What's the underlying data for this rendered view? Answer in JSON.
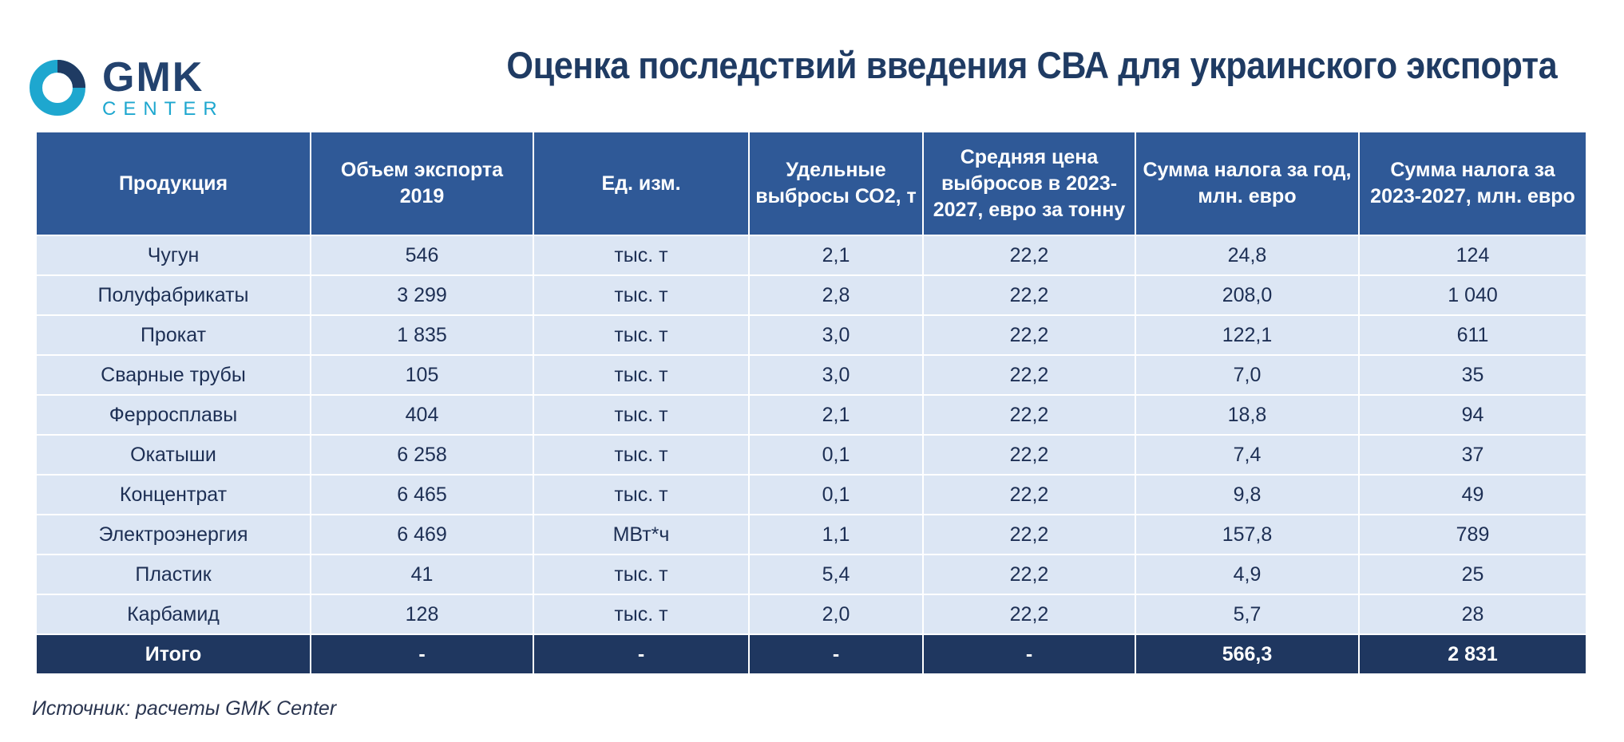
{
  "logo": {
    "main": "GMK",
    "sub": "CENTER"
  },
  "title": "Оценка последствий введения СВА для украинского экспорта",
  "table": {
    "headers": [
      "Продукция",
      "Объем экспорта 2019",
      "Ед. изм.",
      "Удельные выбросы СО2, т",
      "Средняя цена выбросов в 2023-2027, евро за тонну",
      "Сумма налога за год, млн. евро",
      "Сумма налога за 2023-2027, млн. евро"
    ],
    "rows": [
      [
        "Чугун",
        "546",
        "тыс. т",
        "2,1",
        "22,2",
        "24,8",
        "124"
      ],
      [
        "Полуфабрикаты",
        "3 299",
        "тыс. т",
        "2,8",
        "22,2",
        "208,0",
        "1 040"
      ],
      [
        "Прокат",
        "1 835",
        "тыс. т",
        "3,0",
        "22,2",
        "122,1",
        "611"
      ],
      [
        "Сварные трубы",
        "105",
        "тыс. т",
        "3,0",
        "22,2",
        "7,0",
        "35"
      ],
      [
        "Ферросплавы",
        "404",
        "тыс. т",
        "2,1",
        "22,2",
        "18,8",
        "94"
      ],
      [
        "Окатыши",
        "6 258",
        "тыс. т",
        "0,1",
        "22,2",
        "7,4",
        "37"
      ],
      [
        "Концентрат",
        "6 465",
        "тыс. т",
        "0,1",
        "22,2",
        "9,8",
        "49"
      ],
      [
        "Электроэнергия",
        "6 469",
        "МВт*ч",
        "1,1",
        "22,2",
        "157,8",
        "789"
      ],
      [
        "Пластик",
        "41",
        "тыс. т",
        "5,4",
        "22,2",
        "4,9",
        "25"
      ],
      [
        "Карбамид",
        "128",
        "тыс. т",
        "2,0",
        "22,2",
        "5,7",
        "28"
      ]
    ],
    "total": [
      "Итого",
      "-",
      "-",
      "-",
      "-",
      "566,3",
      "2 831"
    ]
  },
  "source": "Источник: расчеты GMK Center",
  "colors": {
    "header_bg": "#2f5997",
    "row_bg": "#dce6f4",
    "total_bg": "#1f3760",
    "title": "#1f3b63",
    "logo_accent": "#1ea7cf"
  },
  "icons": {
    "logo": "gmk-ring-logo-icon"
  }
}
